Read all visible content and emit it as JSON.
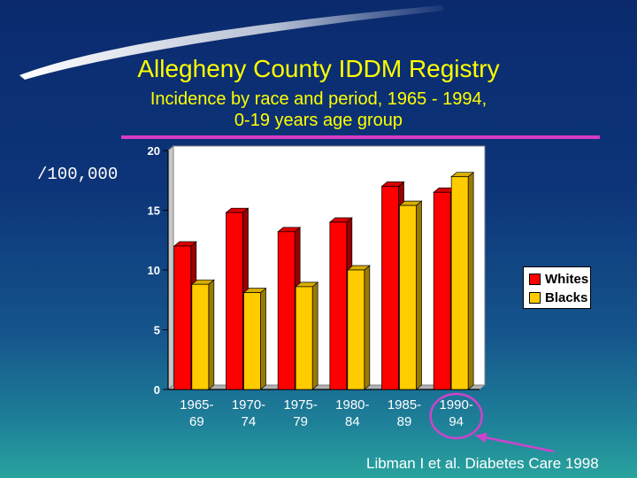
{
  "slide": {
    "title": "Allegheny County IDDM Registry",
    "subtitle": "Incidence by race and period, 1965 - 1994,\n0-19 years age group",
    "unit_label": "/100,000",
    "source": "Libman I et al. Diabetes Care 1998"
  },
  "colors": {
    "whites": "#ff0000",
    "blacks": "#ffcc00",
    "rule": "#d63cc8",
    "highlight": "#cc44cc",
    "title": "#ffff00"
  },
  "chart_data": {
    "type": "bar",
    "title": "Incidence by race and period, 1965 - 1994, 0-19 years age group",
    "ylabel": "/100,000",
    "xlabel": "",
    "categories": [
      "1965-\n69",
      "1970-\n74",
      "1975-\n79",
      "1980-\n84",
      "1985-\n89",
      "1990-\n94"
    ],
    "series": [
      {
        "name": "Whites",
        "values": [
          12.0,
          14.8,
          13.2,
          14.0,
          17.0,
          16.5
        ]
      },
      {
        "name": "Blacks",
        "values": [
          8.8,
          8.1,
          8.6,
          10.0,
          15.4,
          17.8
        ]
      }
    ],
    "ylim": [
      0,
      20
    ],
    "yticks": [
      0,
      5,
      10,
      15,
      20
    ],
    "grid": false,
    "legend": "right",
    "highlighted_category": "1990-\n94"
  }
}
